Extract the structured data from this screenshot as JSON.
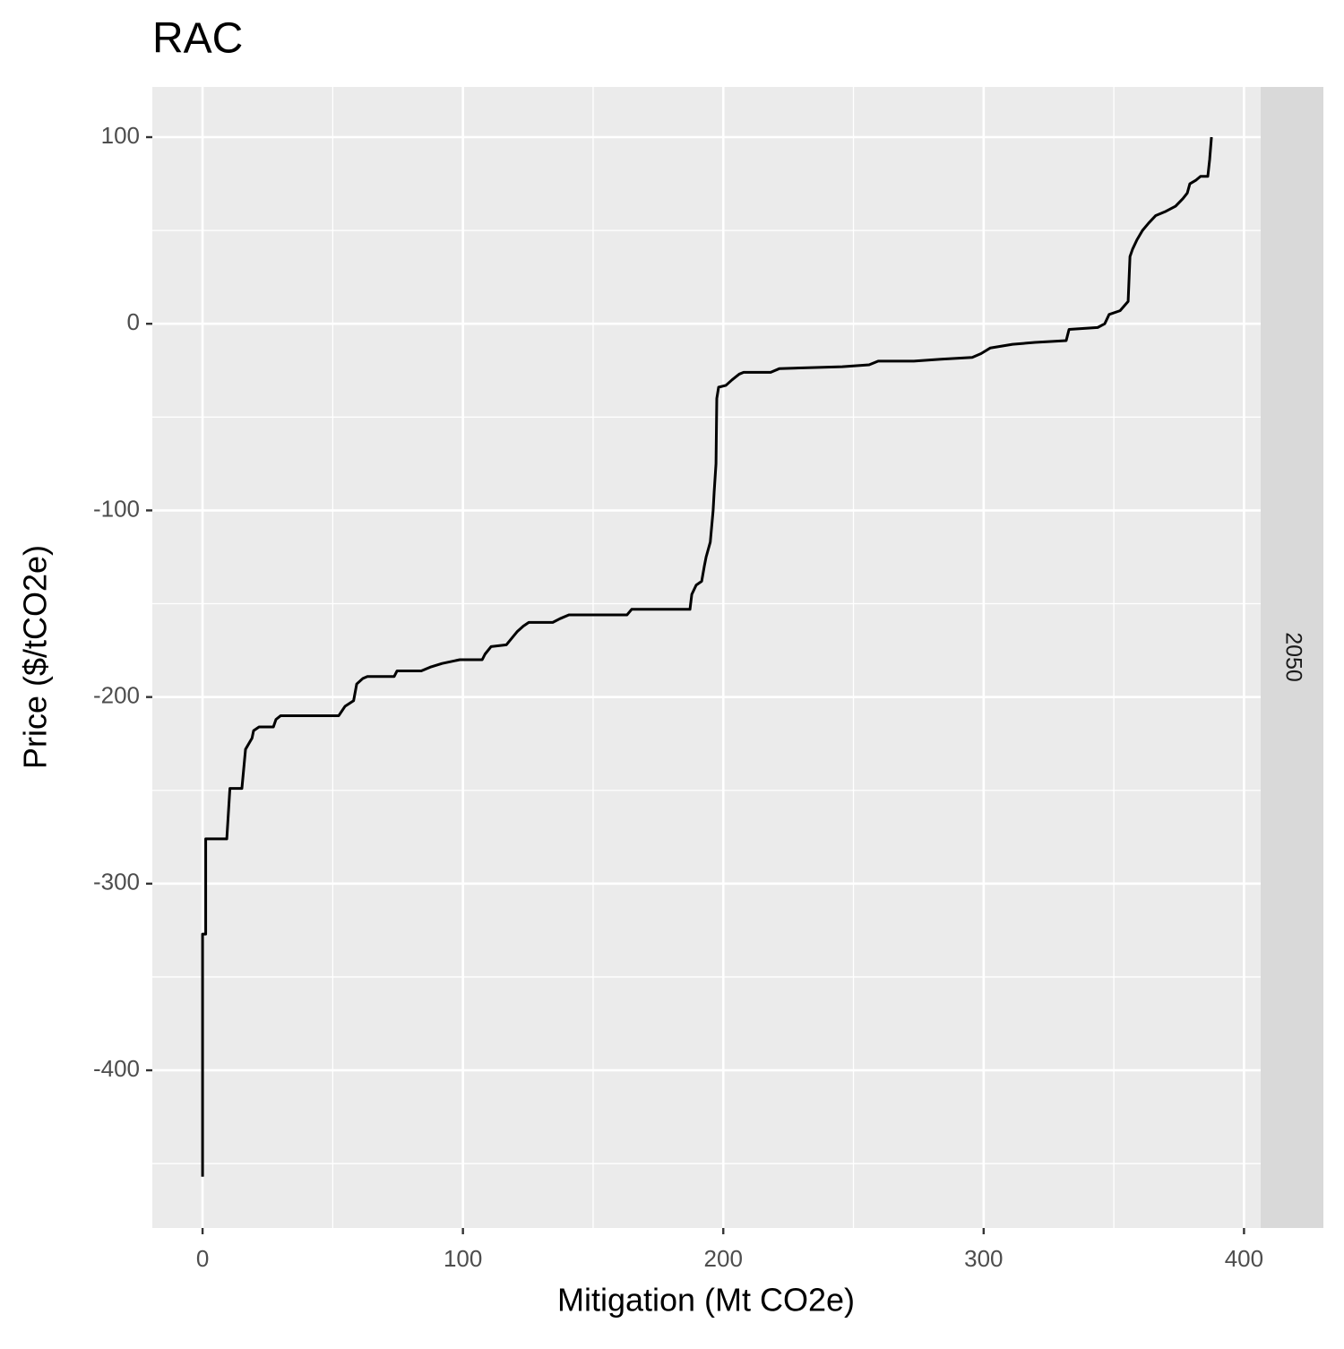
{
  "chart_data": {
    "type": "line",
    "title": "RAC",
    "x_label": "Mitigation (Mt CO2e)",
    "y_label": "Price ($/tCO2e)",
    "facet_label": "2050",
    "x": [
      0,
      0,
      1.2,
      1.2,
      9.3,
      10.5,
      15.1,
      16.5,
      19,
      19.6,
      21.7,
      27.2,
      28.2,
      30,
      52.3,
      54.7,
      58,
      59.2,
      61.6,
      63.3,
      73.6,
      74.7,
      84,
      87.4,
      92,
      98.8,
      107.4,
      108.5,
      110.8,
      116.7,
      120.8,
      123.2,
      125.3,
      134.5,
      137.3,
      140.7,
      163,
      164.8,
      187.2,
      187.9,
      189.6,
      191.7,
      192.7,
      193.4,
      195,
      196.1,
      196.5,
      197.2,
      197.5,
      198.2,
      201,
      203.4,
      206.1,
      207.8,
      218.2,
      221.6,
      245.7,
      256,
      259.5,
      273.2,
      283.6,
      295.6,
      299,
      302.5,
      311.1,
      319.7,
      331.7,
      332.8,
      343.8,
      346.5,
      348.2,
      352.4,
      355.5,
      356.2,
      357.2,
      358.9,
      361,
      363.4,
      366.1,
      369.6,
      373.7,
      376.5,
      378.2,
      379.2,
      381.6,
      383.3,
      386.1,
      386.8,
      387.5
    ],
    "values": [
      -457,
      -327,
      -327,
      -276,
      -276,
      -249,
      -249,
      -228,
      -222,
      -218,
      -216,
      -216,
      -212,
      -210,
      -210,
      -205,
      -202,
      -193,
      -190,
      -189,
      -189,
      -186,
      -186,
      -184,
      -182,
      -180,
      -180,
      -177,
      -173,
      -172,
      -165,
      -162,
      -160,
      -160,
      -158,
      -156,
      -156,
      -153,
      -153,
      -145,
      -140,
      -138,
      -130,
      -125,
      -117,
      -100,
      -90,
      -75,
      -40,
      -34,
      -33,
      -30,
      -27,
      -26,
      -26,
      -24,
      -23,
      -22,
      -20,
      -20,
      -19,
      -18,
      -16,
      -13,
      -11,
      -10,
      -9,
      -3,
      -2,
      0,
      5,
      7,
      12,
      36,
      40,
      45,
      50,
      54,
      58,
      60,
      63,
      67,
      70,
      75,
      77,
      79,
      79,
      88,
      100
    ],
    "color": "#000000",
    "xlim": [
      -19.3,
      406.4
    ],
    "ylim": [
      -484.5,
      126.9
    ],
    "xticks": [
      0,
      100,
      200,
      300,
      400
    ],
    "yticks": [
      -400,
      -300,
      -200,
      -100,
      0,
      100
    ],
    "x_minor_ticks": [
      50,
      150,
      250,
      350
    ],
    "y_minor_ticks": [
      -450,
      -350,
      -250,
      -150,
      -50,
      50
    ],
    "grid": true
  }
}
